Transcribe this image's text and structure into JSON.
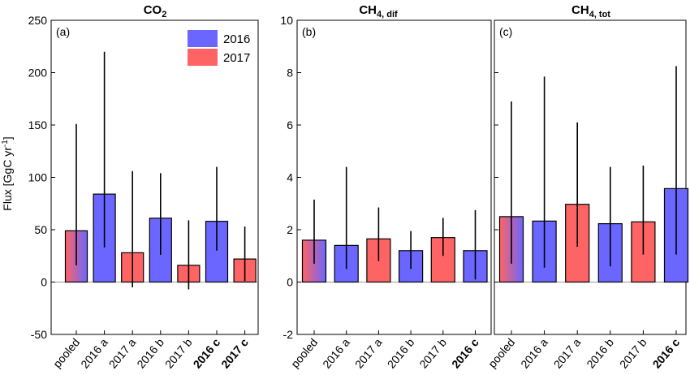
{
  "figure": {
    "ylabel_main": "Flux [GgC yr",
    "ylabel_sup": "-1",
    "ylabel_close": "]"
  },
  "colors": {
    "blue": "#6b66ff",
    "red": "#ff6464",
    "pooled_start": "#ff6464",
    "pooled_end": "#6b66ff"
  },
  "legend": [
    {
      "label": "2016",
      "color": "#6b66ff"
    },
    {
      "label": "2017",
      "color": "#ff6464"
    }
  ],
  "chart_data": [
    {
      "type": "bar",
      "panel": "(a)",
      "title_main": "CO",
      "title_sub": "2",
      "ylim": [
        -50,
        250
      ],
      "yticks": [
        -50,
        0,
        50,
        100,
        150,
        200,
        250
      ],
      "categories": [
        "pooled",
        "2016 a",
        "2017 a",
        "2016 b",
        "2017 b",
        "2016 c",
        "2017 c"
      ],
      "bold_categories": [
        "2016 c",
        "2017 c"
      ],
      "bar_colors": [
        "pooled",
        "blue",
        "red",
        "blue",
        "red",
        "blue",
        "red"
      ],
      "values": [
        49,
        84,
        28,
        61,
        16,
        58,
        22
      ],
      "err_low": [
        16,
        33,
        -5,
        26,
        -7,
        30,
        1
      ],
      "err_high": [
        151,
        220,
        106,
        104,
        59,
        110,
        53
      ]
    },
    {
      "type": "bar",
      "panel": "(b)",
      "title_main": "CH",
      "title_sub": "4, dif",
      "ylim": [
        -2,
        10
      ],
      "yticks": [
        -2,
        0,
        2,
        4,
        6,
        8,
        10
      ],
      "categories": [
        "pooled",
        "2016 a",
        "2017 a",
        "2016 b",
        "2017 b",
        "2016 c"
      ],
      "bold_categories": [
        "2016 c"
      ],
      "bar_colors": [
        "pooled",
        "blue",
        "red",
        "blue",
        "red",
        "blue"
      ],
      "values": [
        1.6,
        1.4,
        1.65,
        1.2,
        1.7,
        1.2
      ],
      "err_low": [
        0.7,
        0.5,
        0.8,
        0.5,
        1.0,
        0.1
      ],
      "err_high": [
        3.15,
        4.4,
        2.85,
        1.95,
        2.45,
        2.75
      ]
    },
    {
      "type": "bar",
      "panel": "(c)",
      "title_main": "CH",
      "title_sub": "4, tot",
      "ylim": [
        -2,
        10
      ],
      "yticks": [
        -2,
        0,
        2,
        4,
        6,
        8,
        10
      ],
      "categories": [
        "pooled",
        "2016 a",
        "2017 a",
        "2016 b",
        "2017 b",
        "2016 c"
      ],
      "bold_categories": [
        "2016 c"
      ],
      "bar_colors": [
        "pooled",
        "blue",
        "red",
        "blue",
        "red",
        "blue"
      ],
      "values": [
        2.5,
        2.33,
        2.97,
        2.23,
        2.3,
        3.57
      ],
      "err_low": [
        0.7,
        0.55,
        1.35,
        0.6,
        1.05,
        1.05
      ],
      "err_high": [
        6.9,
        7.85,
        6.1,
        4.4,
        4.45,
        8.25
      ]
    }
  ]
}
